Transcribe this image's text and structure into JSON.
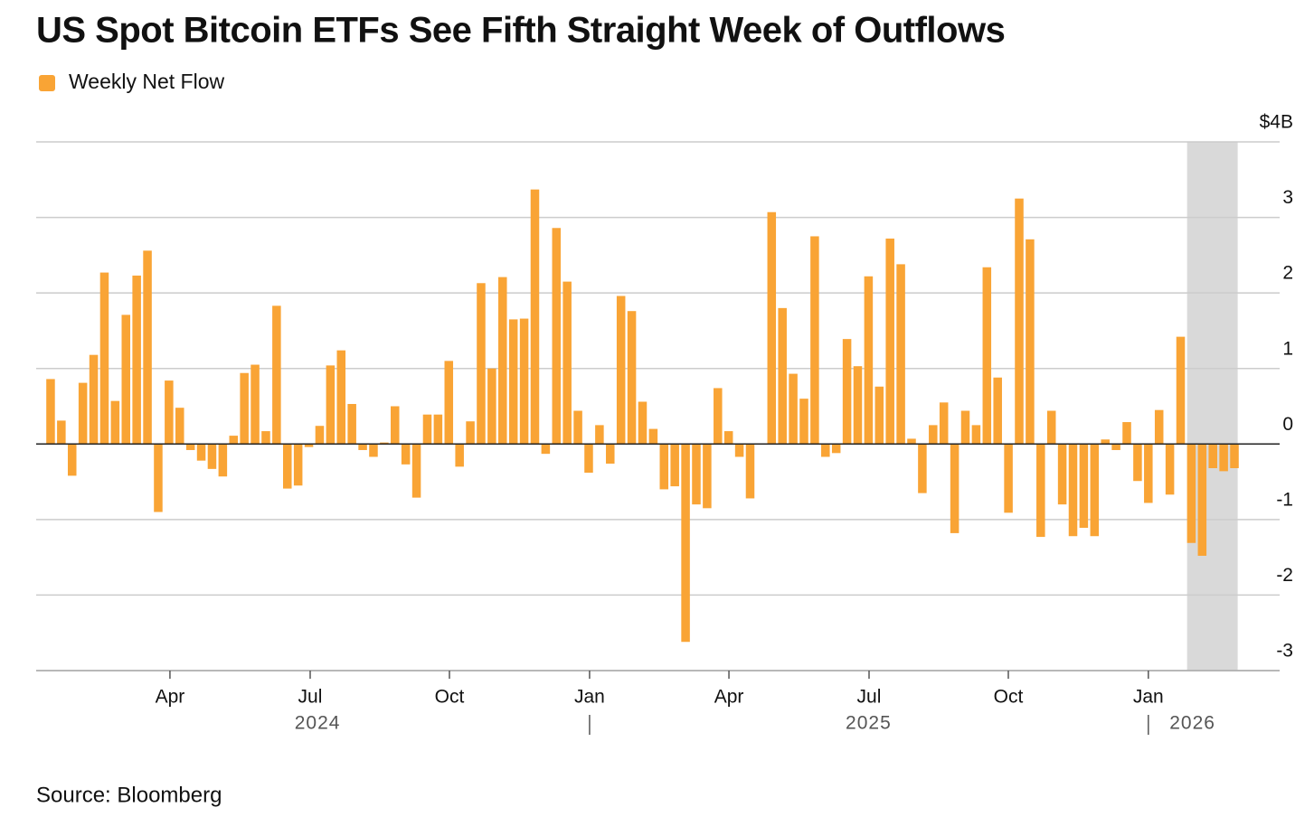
{
  "chart_data": {
    "type": "bar",
    "title": "US Spot Bitcoin ETFs See Fifth Straight Week of Outflows",
    "source": "Source: Bloomberg",
    "series": [
      {
        "name": "Weekly Net Flow",
        "color": "#f9a435",
        "values": [
          0.86,
          0.31,
          -0.42,
          0.81,
          1.18,
          2.27,
          0.57,
          1.71,
          2.23,
          2.56,
          -0.9,
          0.84,
          0.48,
          -0.08,
          -0.22,
          -0.33,
          -0.43,
          0.11,
          0.94,
          1.05,
          0.17,
          1.83,
          -0.59,
          -0.55,
          -0.04,
          0.24,
          1.04,
          1.24,
          0.53,
          -0.08,
          -0.17,
          0.02,
          0.5,
          -0.27,
          -0.71,
          0.39,
          0.39,
          1.1,
          -0.3,
          0.3,
          2.13,
          1.0,
          2.21,
          1.65,
          1.66,
          3.37,
          -0.13,
          2.86,
          2.15,
          0.44,
          -0.38,
          0.25,
          -0.26,
          1.96,
          1.76,
          0.56,
          0.2,
          -0.6,
          -0.56,
          -2.62,
          -0.8,
          -0.85,
          0.74,
          0.17,
          -0.17,
          -0.72,
          0,
          3.07,
          1.8,
          0.93,
          0.6,
          2.75,
          -0.17,
          -0.12,
          1.39,
          1.03,
          2.22,
          0.76,
          2.72,
          2.38,
          0.07,
          -0.65,
          0.25,
          0.55,
          -1.18,
          0.44,
          0.25,
          2.34,
          0.88,
          -0.91,
          3.25,
          2.71,
          -1.23,
          0.44,
          -0.8,
          -1.22,
          -1.11,
          -1.22,
          0.06,
          -0.08,
          0.29,
          -0.49,
          -0.78,
          0.45,
          -0.67,
          1.42,
          -1.31,
          -1.48,
          -0.32,
          -0.36,
          -0.32
        ]
      }
    ],
    "xlim": [
      -1.34,
      114.2
    ],
    "xticks": [
      {
        "value": 11.09,
        "label": "Apr"
      },
      {
        "value": 24.12,
        "label": "Jul"
      },
      {
        "value": 37.06,
        "label": "Oct"
      },
      {
        "value": 50.08,
        "label": "Jan"
      },
      {
        "value": 63.03,
        "label": "Apr"
      },
      {
        "value": 76.05,
        "label": "Jul"
      },
      {
        "value": 88.99,
        "label": "Oct"
      },
      {
        "value": 102.0,
        "label": "Jan"
      }
    ],
    "year_labels": [
      {
        "value": 24.8,
        "label": "2024"
      },
      {
        "value": 76.0,
        "label": "2025"
      },
      {
        "value": 106.1,
        "label": "2026"
      }
    ],
    "year_separators": [
      50.08,
      102.0
    ],
    "shaded_range": [
      105.6,
      110.3
    ],
    "ylim": [
      -3,
      4
    ],
    "yticks": [
      -3,
      -2,
      -1,
      0,
      1,
      2,
      3,
      {
        "value": 4,
        "label": "$4B"
      }
    ],
    "grid": true
  }
}
